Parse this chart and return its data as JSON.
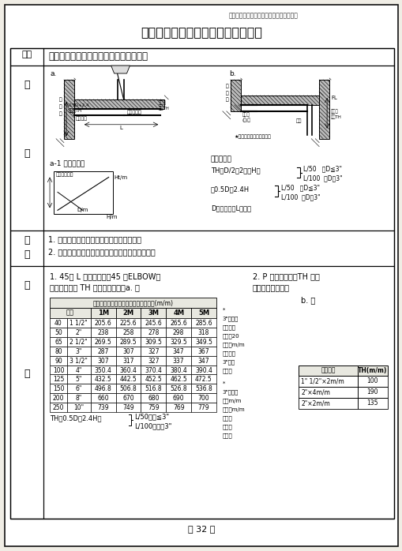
{
  "page_title_small": "第一篇　建築排水衛生設備配管施工標準圖",
  "page_title_large": "建築工程污排水設備配管施工標準圖",
  "item_label": "項目",
  "item_content": "二十七、浴廁天花板至樓板的最小淨空間",
  "basis_1": "1. 建築技術規則設備編第三十二條第一款。",
  "basis_2": "2. 南亞塑膠工業股份有限公司塑膠管接頭規格表。",
  "explain_title1": "1. 45度 L 型排水接頭（45 度ELBOW）",
  "explain_title1b": "　天花板淨高 TH 長度　　　　　a. 圖",
  "explain_title2": "2. P 型存水接頭，TH 長度",
  "explain_title2b": "（依南亞規格表）",
  "explain_title2c": "b. 圖",
  "table_header": "浴廁天花板至樓板的最小淨空間詳細表(m/m)",
  "table_col_headers": [
    "規格",
    "1M",
    "2M",
    "3M",
    "4M",
    "5M"
  ],
  "table_data": [
    [
      "40",
      "1 1/2\"",
      "205.6",
      "225.6",
      "245.6",
      "265.6",
      "285.6"
    ],
    [
      "50",
      "2\"",
      "238",
      "258",
      "278",
      "298",
      "318"
    ],
    [
      "65",
      "2 1/2\"",
      "269.5",
      "289.5",
      "309.5",
      "329.5",
      "349.5"
    ],
    [
      "80",
      "3\"",
      "287",
      "307",
      "327",
      "347",
      "367"
    ],
    [
      "90",
      "3 1/2\"",
      "307",
      "317",
      "327",
      "337",
      "347"
    ],
    [
      "100",
      "4\"",
      "350.4",
      "360.4",
      "370.4",
      "380.4",
      "390.4"
    ],
    [
      "125",
      "5\"",
      "432.5",
      "442.5",
      "452.5",
      "462.5",
      "472.5"
    ],
    [
      "150",
      "6\"",
      "496.8",
      "506.8",
      "516.8",
      "526.8",
      "536.8"
    ],
    [
      "200",
      "8\"",
      "660",
      "670",
      "680",
      "690",
      "700"
    ],
    [
      "250",
      "10\"",
      "739",
      "749",
      "759",
      "769",
      "779"
    ]
  ],
  "table_note_lines": [
    "3\"則每增",
    "以管增多",
    "下層－20",
    "入套束m/m",
    "余；；；",
    "3\"長淨",
    "一度高"
  ],
  "table_note2_lines": [
    "*",
    "3\"含一多",
    "以，m/m",
    "上長．m/m",
    "一度淨",
    "同等高",
    "接增距"
  ],
  "formula_bottom1": "TH＝0.5D＋2.4H＋",
  "formula_bottom1b": "L/50　當≦3\"",
  "formula_bottom2": "L/100　當＞3\"",
  "side_table_header1": "規　　則",
  "side_table_header2": "TH(m/m)",
  "side_table_data": [
    [
      "1\" 1/2\"×2m/m",
      "100"
    ],
    [
      "2\"×4m/m",
      "190"
    ],
    [
      "2\"×2m/m",
      "135"
    ]
  ],
  "page_number": "－ 32 －",
  "bg_color": "#f0ede5",
  "white": "#ffffff",
  "black": "#111111",
  "gray_fill": "#cccccc",
  "light_gray": "#e8e8e0"
}
